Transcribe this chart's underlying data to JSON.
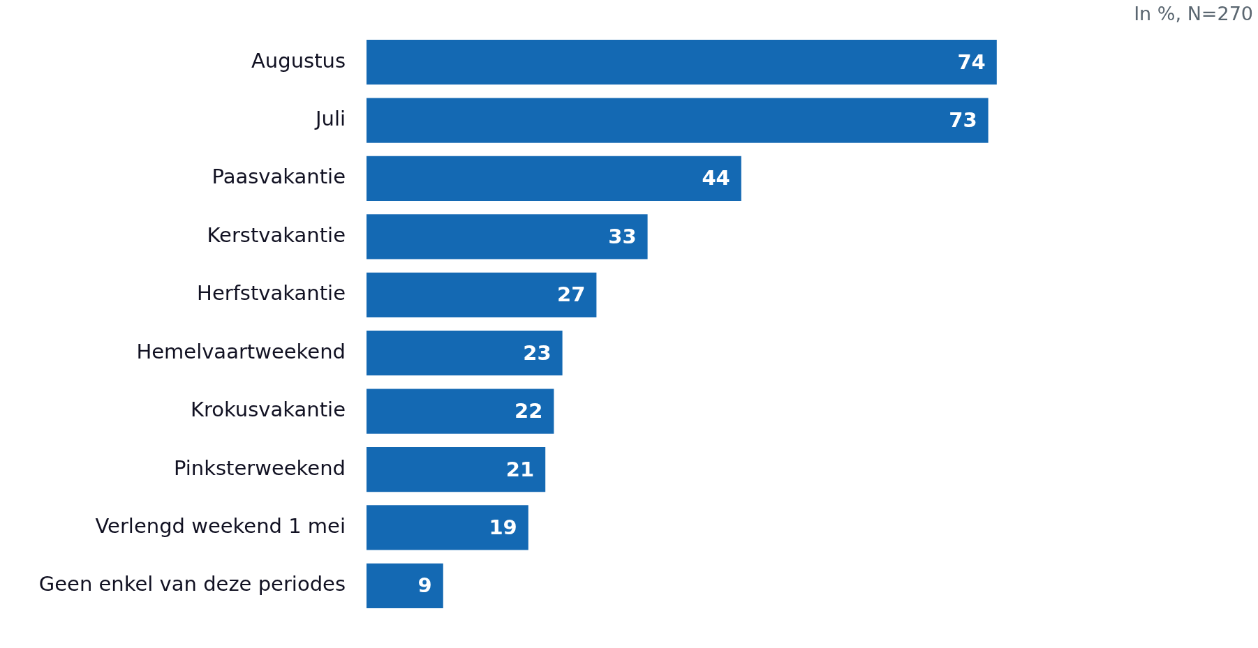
{
  "chart_data": {
    "type": "bar",
    "orientation": "horizontal",
    "annotations": [
      "In %, N=270"
    ],
    "categories": [
      "Augustus",
      "Juli",
      "Paasvakantie",
      "Kerstvakantie",
      "Herfstvakantie",
      "Hemelvaartweekend",
      "Krokusvakantie",
      "Pinksterweekend",
      "Verlengd weekend 1 mei",
      "Geen enkel van deze periodes"
    ],
    "values": [
      74,
      73,
      44,
      33,
      27,
      23,
      22,
      21,
      19,
      9
    ],
    "color": "#1469b3",
    "tick_labels": "y",
    "legend": false,
    "data_labels": true
  }
}
